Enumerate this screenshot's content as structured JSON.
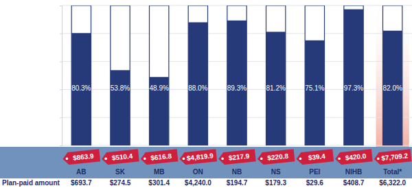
{
  "chart_data": {
    "type": "bar",
    "categories": [
      "AB",
      "SK",
      "MB",
      "ON",
      "NB",
      "NS",
      "PEI",
      "NIHB",
      "Total*"
    ],
    "values": [
      80.3,
      53.8,
      48.9,
      88.0,
      89.3,
      81.2,
      75.1,
      97.3,
      82.0
    ],
    "value_labels": [
      "80.3%",
      "53.8%",
      "48.9%",
      "88.0%",
      "89.3%",
      "81.2%",
      "75.1%",
      "97.3%",
      "82.0%"
    ],
    "color": "#263a7a",
    "data_labels": true,
    "ylim": [
      0,
      100
    ],
    "yticks": [
      0,
      20,
      40,
      60,
      80,
      100
    ],
    "grid": true,
    "tick_labels": "x",
    "totals": [
      863.9,
      510.4,
      616.8,
      4819.9,
      217.9,
      220.8,
      39.4,
      420.0,
      7709.2
    ],
    "total_labels": [
      "$863.9",
      "$510.4",
      "$616.8",
      "$4,819.9",
      "$217.9",
      "$220.8",
      "$39.4",
      "$420.0",
      "$7,709.2"
    ],
    "table": {
      "label": "Plan-paid amount",
      "values": [
        693.7,
        274.5,
        301.4,
        4240.0,
        194.7,
        179.3,
        29.6,
        408.7,
        6322.0
      ],
      "value_labels": [
        "$693.7",
        "$274.5",
        "$301.4",
        "$4,240.0",
        "$194.7",
        "$179.3",
        "$29.6",
        "$408.7",
        "$6,322.0"
      ]
    }
  }
}
